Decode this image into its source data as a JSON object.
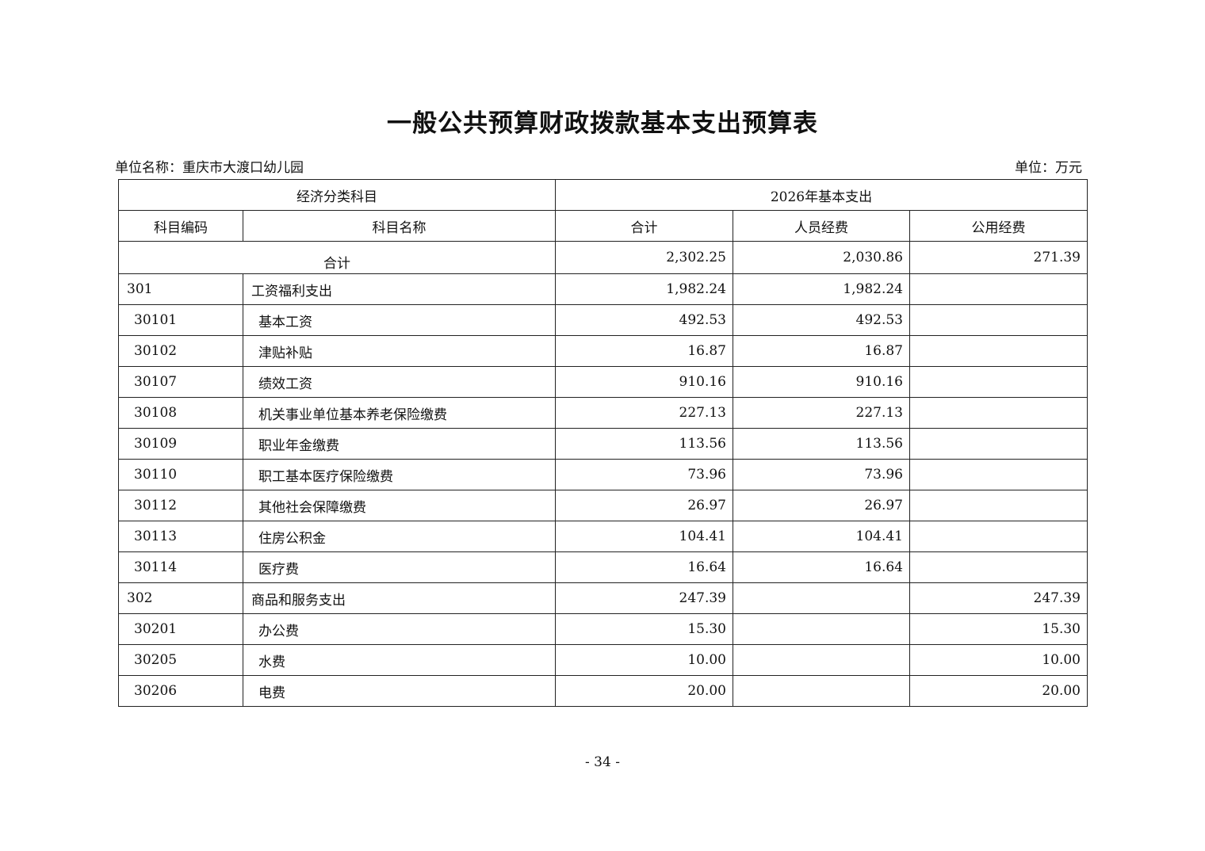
{
  "title": "一般公共预算财政拨款基本支出预算表",
  "unit_name": "单位名称：重庆市大渡口幼儿园",
  "unit": "单位：万元",
  "header": {
    "group_left": "经济分类科目",
    "group_right": "2026年基本支出",
    "code": "科目编码",
    "name": "科目名称",
    "total": "合计",
    "personnel": "人员经费",
    "public": "公用经费"
  },
  "total_row": {
    "label": "合计",
    "total": "2,302.25",
    "personnel": "2,030.86",
    "public": "271.39"
  },
  "rows": [
    {
      "code": "301",
      "name": "工资福利支出",
      "total": "1,982.24",
      "personnel": "1,982.24",
      "public": "",
      "level": 1
    },
    {
      "code": "30101",
      "name": "基本工资",
      "total": "492.53",
      "personnel": "492.53",
      "public": "",
      "level": 2
    },
    {
      "code": "30102",
      "name": "津贴补贴",
      "total": "16.87",
      "personnel": "16.87",
      "public": "",
      "level": 2
    },
    {
      "code": "30107",
      "name": "绩效工资",
      "total": "910.16",
      "personnel": "910.16",
      "public": "",
      "level": 2
    },
    {
      "code": "30108",
      "name": "机关事业单位基本养老保险缴费",
      "total": "227.13",
      "personnel": "227.13",
      "public": "",
      "level": 2
    },
    {
      "code": "30109",
      "name": "职业年金缴费",
      "total": "113.56",
      "personnel": "113.56",
      "public": "",
      "level": 2
    },
    {
      "code": "30110",
      "name": "职工基本医疗保险缴费",
      "total": "73.96",
      "personnel": "73.96",
      "public": "",
      "level": 2
    },
    {
      "code": "30112",
      "name": "其他社会保障缴费",
      "total": "26.97",
      "personnel": "26.97",
      "public": "",
      "level": 2
    },
    {
      "code": "30113",
      "name": "住房公积金",
      "total": "104.41",
      "personnel": "104.41",
      "public": "",
      "level": 2
    },
    {
      "code": "30114",
      "name": "医疗费",
      "total": "16.64",
      "personnel": "16.64",
      "public": "",
      "level": 2
    },
    {
      "code": "302",
      "name": "商品和服务支出",
      "total": "247.39",
      "personnel": "",
      "public": "247.39",
      "level": 1
    },
    {
      "code": "30201",
      "name": "办公费",
      "total": "15.30",
      "personnel": "",
      "public": "15.30",
      "level": 2
    },
    {
      "code": "30205",
      "name": "水费",
      "total": "10.00",
      "personnel": "",
      "public": "10.00",
      "level": 2
    },
    {
      "code": "30206",
      "name": "电费",
      "total": "20.00",
      "personnel": "",
      "public": "20.00",
      "level": 2
    }
  ],
  "page_number": "- 34 -"
}
